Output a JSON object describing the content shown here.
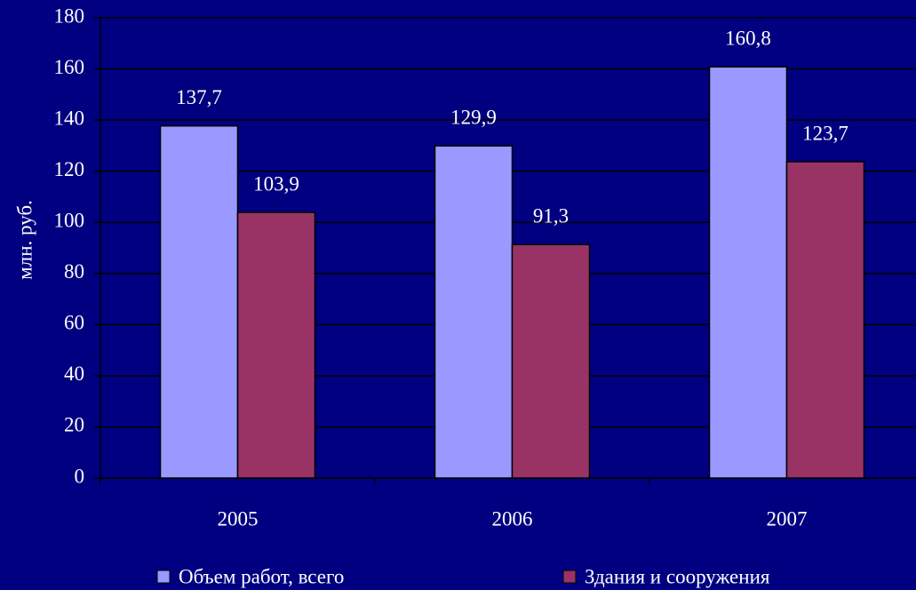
{
  "chart_data": {
    "type": "bar",
    "y_label": "млн. руб.",
    "categories": [
      "2005",
      "2006",
      "2007"
    ],
    "series": [
      {
        "name": "Объем работ, всего",
        "color": "#9999ff",
        "values": [
          137.7,
          129.9,
          160.8
        ],
        "value_labels": [
          "137,7",
          "129,9",
          "160,8"
        ]
      },
      {
        "name": "Здания и сооружения",
        "color": "#993366",
        "values": [
          103.9,
          91.3,
          123.7
        ],
        "value_labels": [
          "103,9",
          "91,3",
          "123,7"
        ]
      }
    ],
    "ylim": [
      0,
      180
    ],
    "yticks": [
      0,
      20,
      40,
      60,
      80,
      100,
      120,
      140,
      160,
      180
    ],
    "grid": true,
    "legend": "bottom"
  }
}
